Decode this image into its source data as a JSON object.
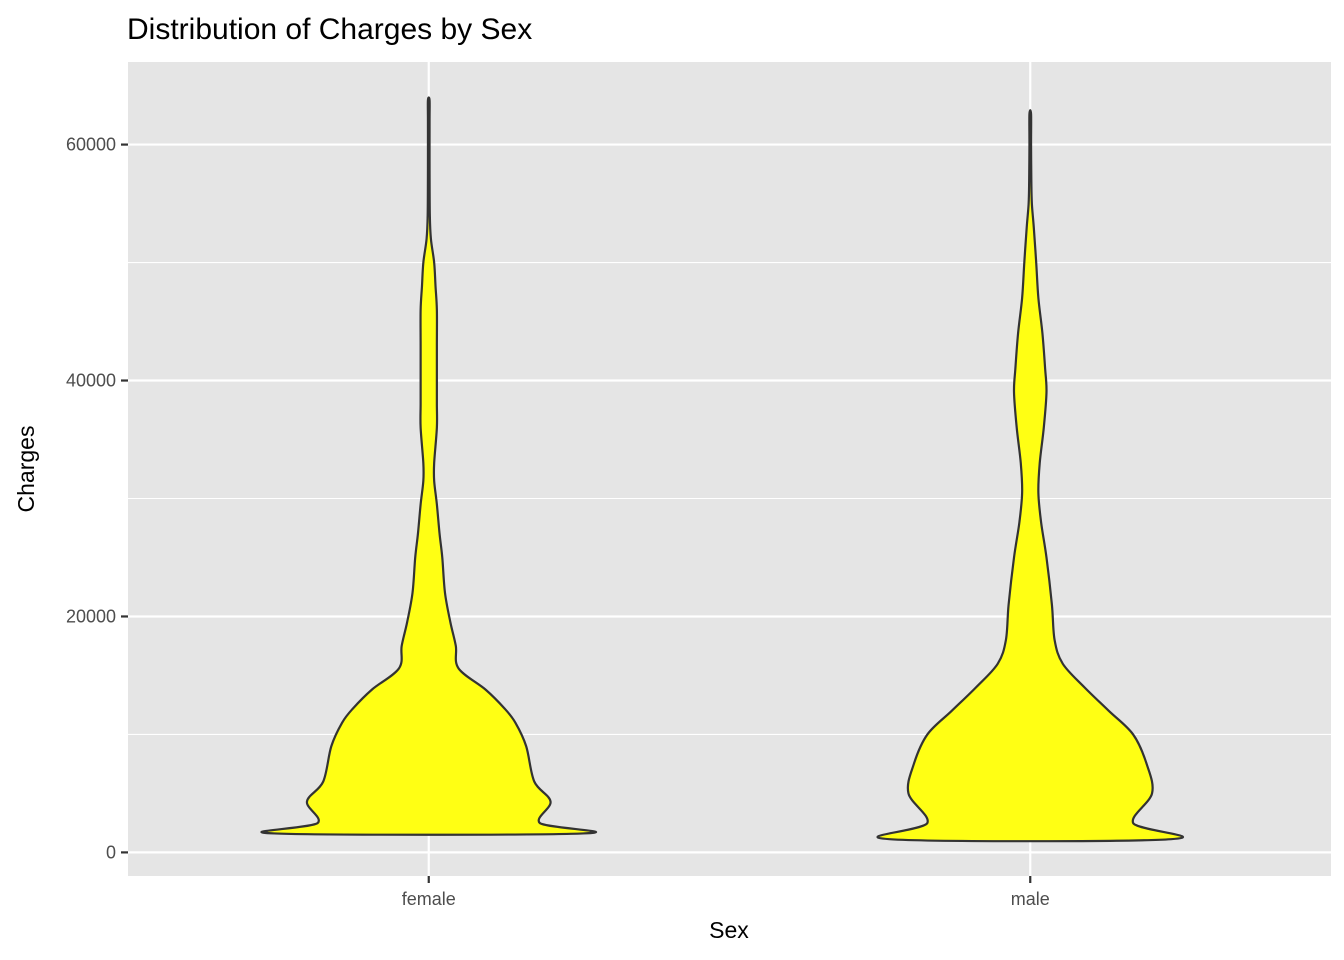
{
  "chart_data": {
    "type": "violin",
    "title": "Distribution of Charges by Sex",
    "xlabel": "Sex",
    "ylabel": "Charges",
    "categories": [
      "female",
      "male"
    ],
    "ylim": [
      -2000,
      67000
    ],
    "yticks": [
      0,
      20000,
      40000,
      60000
    ],
    "ytick_labels": [
      "0",
      "20000",
      "40000",
      "60000"
    ],
    "fill_color": "#FFFF14",
    "outline_color": "#333333",
    "panel_background": "#E5E5E5",
    "grid": true,
    "legend": "none",
    "series": [
      {
        "category": "female",
        "min": 1608,
        "max": 63770,
        "density_profile": [
          [
            1608,
            0.57
          ],
          [
            2500,
            0.41
          ],
          [
            4300,
            0.45
          ],
          [
            6000,
            0.39
          ],
          [
            9000,
            0.36
          ],
          [
            11000,
            0.32
          ],
          [
            12200,
            0.28
          ],
          [
            13800,
            0.21
          ],
          [
            15600,
            0.11
          ],
          [
            17500,
            0.1
          ],
          [
            19500,
            0.08
          ],
          [
            22000,
            0.06
          ],
          [
            25000,
            0.05
          ],
          [
            27000,
            0.04
          ],
          [
            29500,
            0.03
          ],
          [
            31500,
            0.02
          ],
          [
            33000,
            0.02
          ],
          [
            36000,
            0.03
          ],
          [
            38000,
            0.03
          ],
          [
            40000,
            0.03
          ],
          [
            43000,
            0.03
          ],
          [
            46000,
            0.03
          ],
          [
            48000,
            0.025
          ],
          [
            50000,
            0.02
          ],
          [
            52000,
            0.008
          ],
          [
            54000,
            0.004
          ],
          [
            58000,
            0.003
          ],
          [
            62000,
            0.003
          ],
          [
            63770,
            0.003
          ]
        ]
      },
      {
        "category": "male",
        "min": 1122,
        "max": 62593,
        "density_profile": [
          [
            1122,
            0.52
          ],
          [
            2500,
            0.38
          ],
          [
            5000,
            0.45
          ],
          [
            7500,
            0.43
          ],
          [
            10000,
            0.38
          ],
          [
            12000,
            0.29
          ],
          [
            14000,
            0.2
          ],
          [
            16000,
            0.12
          ],
          [
            18000,
            0.09
          ],
          [
            21000,
            0.08
          ],
          [
            25000,
            0.06
          ],
          [
            28000,
            0.04
          ],
          [
            30500,
            0.03
          ],
          [
            33000,
            0.035
          ],
          [
            36000,
            0.05
          ],
          [
            39000,
            0.06
          ],
          [
            41000,
            0.055
          ],
          [
            44000,
            0.045
          ],
          [
            47000,
            0.03
          ],
          [
            50000,
            0.022
          ],
          [
            53000,
            0.013
          ],
          [
            55000,
            0.006
          ],
          [
            57000,
            0.004
          ],
          [
            60000,
            0.003
          ],
          [
            62593,
            0.003
          ]
        ]
      }
    ]
  }
}
